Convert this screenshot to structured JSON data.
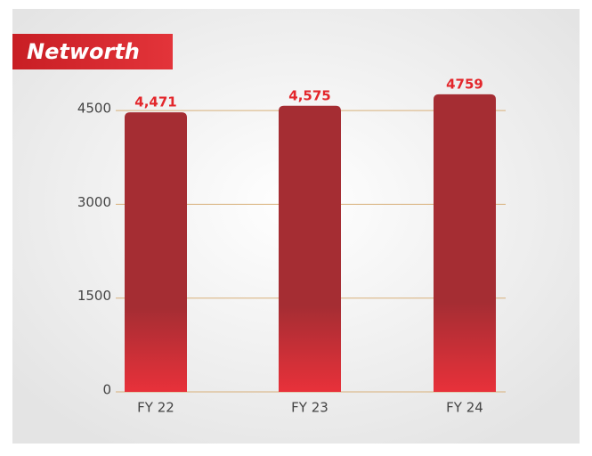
{
  "chart_data": {
    "type": "bar",
    "title": "Networth",
    "categories": [
      "FY 22",
      "FY 23",
      "FY 24"
    ],
    "values": [
      4471,
      4575,
      4759
    ],
    "value_labels": [
      "4,471",
      "4,575",
      "4759"
    ],
    "color": "#a52d33",
    "ylim": [
      0,
      4800
    ],
    "yticks": [
      0,
      1500,
      3000,
      4500
    ],
    "grid": true
  }
}
